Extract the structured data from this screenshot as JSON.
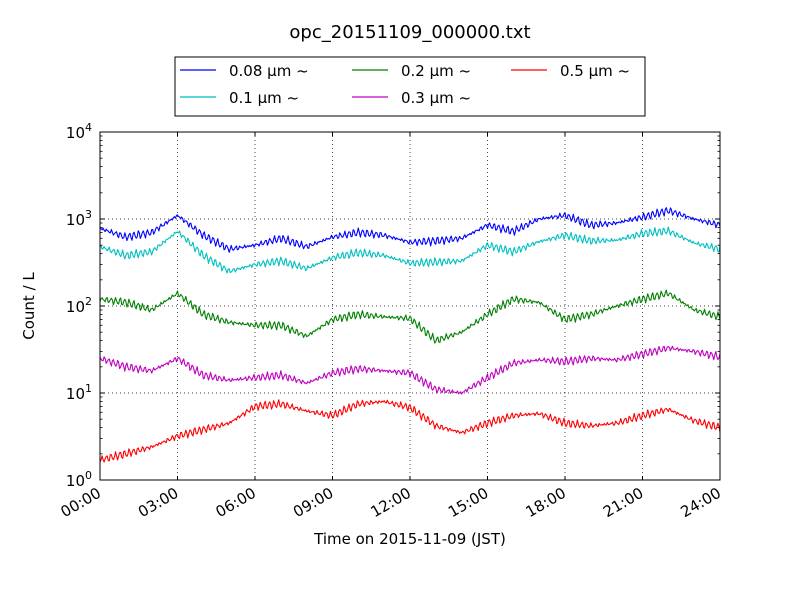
{
  "chart_data": {
    "type": "line",
    "title": "opc_20151109_000000.txt",
    "xlabel": "Time on 2015-11-09 (JST)",
    "ylabel": "Count / L",
    "x_ticks": [
      "00:00",
      "03:00",
      "06:00",
      "09:00",
      "12:00",
      "15:00",
      "18:00",
      "21:00",
      "24:00"
    ],
    "x_tick_hours": [
      0,
      3,
      6,
      9,
      12,
      15,
      18,
      21,
      24
    ],
    "xlim_hours": [
      0,
      24
    ],
    "yscale": "log",
    "ylim": [
      1,
      10000
    ],
    "y_ticks": [
      {
        "value": 1,
        "base": "10",
        "exp": "0"
      },
      {
        "value": 10,
        "base": "10",
        "exp": "1"
      },
      {
        "value": 100,
        "base": "10",
        "exp": "2"
      },
      {
        "value": 1000,
        "base": "10",
        "exp": "3"
      },
      {
        "value": 10000,
        "base": "10",
        "exp": "4"
      }
    ],
    "grid": true,
    "legend_position": "top-center",
    "series": [
      {
        "name": "0.08 μm ~",
        "color": "#0000ff",
        "x_hours": [
          0,
          1,
          2,
          3,
          4,
          5,
          6,
          7,
          8,
          9,
          10,
          11,
          12,
          13,
          14,
          15,
          16,
          17,
          18,
          19,
          20,
          21,
          22,
          23,
          24
        ],
        "values": [
          780,
          620,
          700,
          1100,
          650,
          450,
          500,
          600,
          480,
          620,
          700,
          650,
          540,
          560,
          600,
          850,
          720,
          1000,
          1100,
          850,
          900,
          1050,
          1250,
          1000,
          850
        ]
      },
      {
        "name": "0.1 μm ~",
        "color": "#00bfbf",
        "x_hours": [
          0,
          1,
          2,
          3,
          4,
          5,
          6,
          7,
          8,
          9,
          10,
          11,
          12,
          13,
          14,
          15,
          16,
          17,
          18,
          19,
          20,
          21,
          22,
          23,
          24
        ],
        "values": [
          480,
          380,
          420,
          720,
          380,
          250,
          300,
          330,
          270,
          360,
          410,
          380,
          310,
          320,
          330,
          500,
          420,
          550,
          650,
          560,
          570,
          680,
          730,
          530,
          450
        ]
      },
      {
        "name": "0.2 μm ~",
        "color": "#008000",
        "x_hours": [
          0,
          1,
          2,
          3,
          4,
          5,
          6,
          7,
          8,
          9,
          10,
          11,
          12,
          13,
          14,
          15,
          16,
          17,
          18,
          19,
          20,
          21,
          22,
          23,
          24
        ],
        "values": [
          120,
          110,
          90,
          140,
          80,
          65,
          60,
          60,
          45,
          70,
          80,
          75,
          72,
          40,
          50,
          80,
          120,
          110,
          70,
          80,
          100,
          120,
          140,
          90,
          75
        ]
      },
      {
        "name": "0.3 μm ~",
        "color": "#bf00bf",
        "x_hours": [
          0,
          1,
          2,
          3,
          4,
          5,
          6,
          7,
          8,
          9,
          10,
          11,
          12,
          13,
          14,
          15,
          16,
          17,
          18,
          19,
          20,
          21,
          22,
          23,
          24
        ],
        "values": [
          25,
          20,
          18,
          25,
          16,
          14,
          15,
          16,
          13,
          17,
          19,
          18,
          17,
          11,
          10,
          15,
          22,
          24,
          23,
          25,
          24,
          28,
          33,
          30,
          26
        ]
      },
      {
        "name": "0.5 μm ~",
        "color": "#ff0000",
        "x_hours": [
          0,
          1,
          2,
          3,
          4,
          5,
          6,
          7,
          8,
          9,
          10,
          11,
          12,
          13,
          14,
          15,
          16,
          17,
          18,
          19,
          20,
          21,
          22,
          23,
          24
        ],
        "values": [
          1.7,
          2.0,
          2.4,
          3.2,
          3.8,
          4.5,
          7.0,
          7.5,
          6.2,
          5.5,
          7.5,
          8.0,
          6.8,
          4.2,
          3.5,
          4.5,
          5.5,
          5.8,
          4.5,
          4.2,
          4.5,
          5.5,
          6.5,
          4.8,
          4.0
        ]
      }
    ]
  }
}
